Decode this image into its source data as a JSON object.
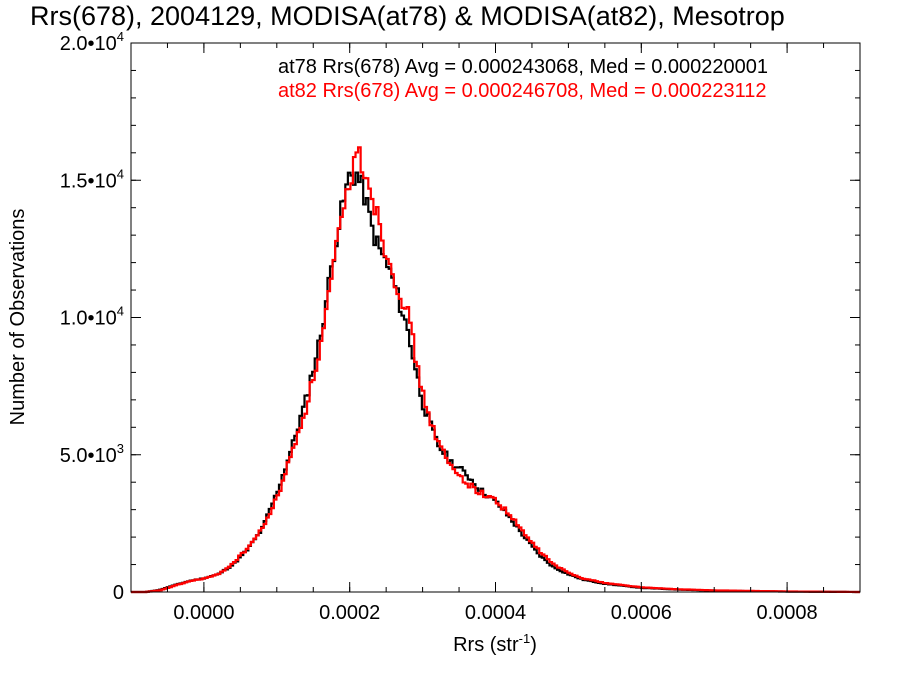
{
  "chart_data": {
    "type": "line",
    "title": "Rrs(678), 2004129, MODISA(at78) & MODISA(at82), Mesotrop",
    "xlabel_base": "Rrs (str",
    "xlabel_sup": "-1",
    "xlabel_end": ")",
    "ylabel": "Number of Observations",
    "xlim": [
      -0.0001,
      0.0009
    ],
    "ylim": [
      0,
      20000
    ],
    "x_ticks": [
      {
        "value": 0.0,
        "label": "0.0000"
      },
      {
        "value": 0.0002,
        "label": "0.0002"
      },
      {
        "value": 0.0004,
        "label": "0.0004"
      },
      {
        "value": 0.0006,
        "label": "0.0006"
      },
      {
        "value": 0.0008,
        "label": "0.0008"
      }
    ],
    "y_ticks": [
      {
        "value": 0,
        "mant": "0",
        "exp": ""
      },
      {
        "value": 5000,
        "mant": "5.0•10",
        "exp": "3"
      },
      {
        "value": 10000,
        "mant": "1.0•10",
        "exp": "4"
      },
      {
        "value": 15000,
        "mant": "1.5•10",
        "exp": "4"
      },
      {
        "value": 20000,
        "mant": "2.0•10",
        "exp": "4"
      }
    ],
    "legend": [
      {
        "text": "at78 Rrs(678) Avg = 0.000243068, Med = 0.000220001",
        "color": "#000000"
      },
      {
        "text": "at82 Rrs(678) Avg = 0.000246708, Med = 0.000223112",
        "color": "#ff0000"
      }
    ],
    "series": [
      {
        "color": "#000000",
        "points": [
          [
            -0.0001,
            0
          ],
          [
            -8e-05,
            0
          ],
          [
            -6e-05,
            80
          ],
          [
            -4e-05,
            250
          ],
          [
            -2e-05,
            400
          ],
          [
            0.0,
            500
          ],
          [
            2e-05,
            650
          ],
          [
            4e-05,
            1000
          ],
          [
            6e-05,
            1550
          ],
          [
            8e-05,
            2300
          ],
          [
            0.0001,
            3600
          ],
          [
            0.00012,
            5200
          ],
          [
            0.00014,
            7000
          ],
          [
            0.00016,
            9300
          ],
          [
            0.00018,
            12700
          ],
          [
            0.00019,
            14000
          ],
          [
            0.0002,
            15200
          ],
          [
            0.00021,
            15200
          ],
          [
            0.00022,
            14500
          ],
          [
            0.00023,
            13300
          ],
          [
            0.00024,
            12500
          ],
          [
            0.00025,
            12000
          ],
          [
            0.00026,
            11300
          ],
          [
            0.00028,
            9500
          ],
          [
            0.0003,
            6900
          ],
          [
            0.00032,
            5400
          ],
          [
            0.00034,
            4700
          ],
          [
            0.00036,
            4300
          ],
          [
            0.00038,
            3700
          ],
          [
            0.0004,
            3300
          ],
          [
            0.00042,
            2700
          ],
          [
            0.00044,
            2000
          ],
          [
            0.00046,
            1350
          ],
          [
            0.00048,
            900
          ],
          [
            0.0005,
            650
          ],
          [
            0.00052,
            450
          ],
          [
            0.00055,
            300
          ],
          [
            0.0006,
            150
          ],
          [
            0.00065,
            90
          ],
          [
            0.0007,
            50
          ],
          [
            0.0008,
            15
          ],
          [
            0.0009,
            0
          ]
        ]
      },
      {
        "color": "#ff0000",
        "points": [
          [
            -0.0001,
            0
          ],
          [
            -8e-05,
            0
          ],
          [
            -6e-05,
            60
          ],
          [
            -4e-05,
            230
          ],
          [
            -2e-05,
            390
          ],
          [
            0.0,
            490
          ],
          [
            2e-05,
            640
          ],
          [
            4e-05,
            1050
          ],
          [
            6e-05,
            1600
          ],
          [
            8e-05,
            2300
          ],
          [
            0.0001,
            3400
          ],
          [
            0.00012,
            5000
          ],
          [
            0.00014,
            6700
          ],
          [
            0.00016,
            8900
          ],
          [
            0.00018,
            12200
          ],
          [
            0.00019,
            13600
          ],
          [
            0.0002,
            15000
          ],
          [
            0.00021,
            16000
          ],
          [
            0.00022,
            15500
          ],
          [
            0.00023,
            14600
          ],
          [
            0.00024,
            13500
          ],
          [
            0.00025,
            12400
          ],
          [
            0.00026,
            11600
          ],
          [
            0.00028,
            10100
          ],
          [
            0.0003,
            7200
          ],
          [
            0.00032,
            5500
          ],
          [
            0.00034,
            4500
          ],
          [
            0.00036,
            4000
          ],
          [
            0.00038,
            3600
          ],
          [
            0.0004,
            3350
          ],
          [
            0.00042,
            2800
          ],
          [
            0.00044,
            2100
          ],
          [
            0.00046,
            1500
          ],
          [
            0.00048,
            1000
          ],
          [
            0.0005,
            700
          ],
          [
            0.00052,
            500
          ],
          [
            0.00055,
            330
          ],
          [
            0.0006,
            170
          ],
          [
            0.00065,
            100
          ],
          [
            0.0007,
            60
          ],
          [
            0.0008,
            20
          ],
          [
            0.0009,
            0
          ]
        ]
      }
    ]
  }
}
